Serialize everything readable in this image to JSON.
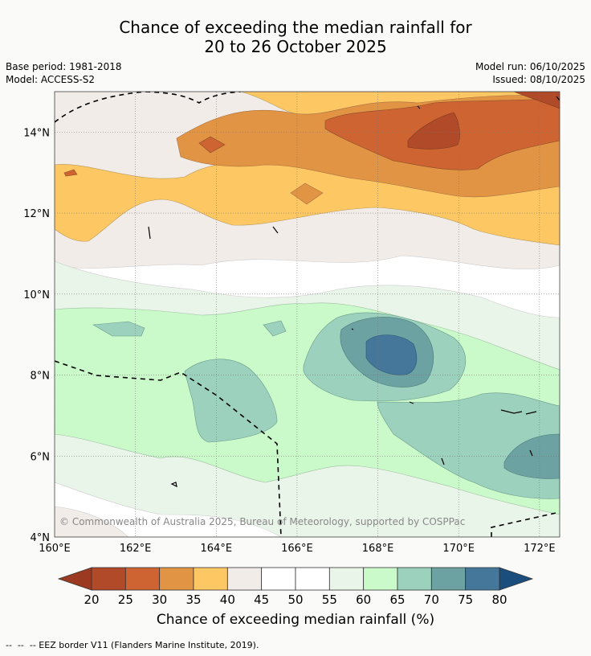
{
  "title_line1": "Chance of exceeding the median rainfall for",
  "title_line2": "20 to 26 October 2025",
  "base_period": "Base period: 1981-2018",
  "model": "Model: ACCESS-S2",
  "model_run": "Model run: 06/10/2025",
  "issued": "Issued: 08/10/2025",
  "copyright": "© Commonwealth of Australia 2025, Bureau of Meteorology, supported by COSPPac",
  "lat_labels": [
    "14°N",
    "12°N",
    "10°N",
    "8°N",
    "6°N",
    "4°N"
  ],
  "lat_values": [
    14,
    12,
    10,
    8,
    6,
    4
  ],
  "lon_labels": [
    "160°E",
    "162°E",
    "164°E",
    "166°E",
    "168°E",
    "170°E",
    "172°E"
  ],
  "lon_values": [
    160,
    162,
    164,
    166,
    168,
    170,
    172
  ],
  "colorbar": {
    "ticks": [
      "20",
      "25",
      "30",
      "35",
      "40",
      "45",
      "50",
      "55",
      "60",
      "65",
      "70",
      "75",
      "80"
    ],
    "colors": [
      "#b04a28",
      "#cd6432",
      "#e09444",
      "#fdc864",
      "#f1ece8",
      "#ffffff",
      "#ffffff",
      "#eaf5ea",
      "#caf9ca",
      "#9bd1bd",
      "#6ca3a2",
      "#44779a"
    ],
    "under_color": "#9b3a20",
    "over_color": "#1b4e7c",
    "label": "Chance of exceeding median rainfall (%)"
  },
  "footer": "--  --  -- EEZ border V11 (Flanders Marine Institute, 2019)."
}
